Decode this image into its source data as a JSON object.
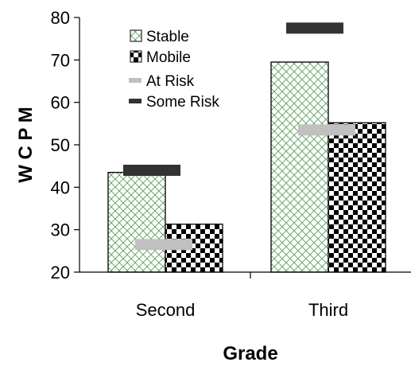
{
  "chart_data": {
    "type": "bar",
    "categories": [
      "Second",
      "Third"
    ],
    "xlabel": "Grade",
    "ylabel": "W C P M",
    "ylim": [
      20,
      80
    ],
    "yticks": [
      20,
      30,
      40,
      50,
      60,
      70,
      80
    ],
    "grid": false,
    "legend_position": "top-left",
    "series": [
      {
        "name": "Stable",
        "values": [
          43.5,
          69.5
        ],
        "pattern": "crosshatch",
        "color": "#5aa05a"
      },
      {
        "name": "Mobile",
        "values": [
          31.3,
          55.2
        ],
        "pattern": "checkerboard",
        "color": "#000000"
      }
    ],
    "markers": [
      {
        "name": "At Risk",
        "values": [
          26.5,
          53.5
        ],
        "color": "#c0c0c0"
      },
      {
        "name": "Some Risk",
        "values": [
          44.0,
          77.5
        ],
        "color": "#333333"
      }
    ]
  }
}
